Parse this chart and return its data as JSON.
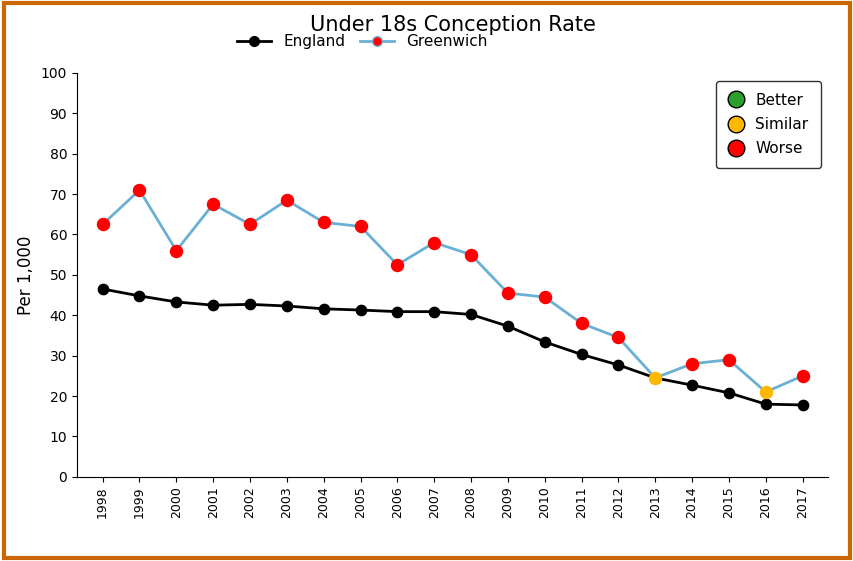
{
  "title": "Under 18s Conception Rate",
  "ylabel": "Per 1,000",
  "years": [
    1998,
    1999,
    2000,
    2001,
    2002,
    2003,
    2004,
    2005,
    2006,
    2007,
    2008,
    2009,
    2010,
    2011,
    2012,
    2013,
    2014,
    2015,
    2016,
    2017
  ],
  "england": [
    46.5,
    44.8,
    43.3,
    42.5,
    42.7,
    42.3,
    41.6,
    41.3,
    40.9,
    40.9,
    40.2,
    37.3,
    33.4,
    30.3,
    27.7,
    24.5,
    22.7,
    20.8,
    18.0,
    17.8
  ],
  "greenwich": [
    62.5,
    71.0,
    56.0,
    67.5,
    62.5,
    68.5,
    63.0,
    62.0,
    52.5,
    58.0,
    55.0,
    45.5,
    44.5,
    38.0,
    34.5,
    24.5,
    28.0,
    29.0,
    21.0,
    25.0
  ],
  "greenwich_colors": [
    "red",
    "red",
    "red",
    "red",
    "red",
    "red",
    "red",
    "red",
    "red",
    "red",
    "red",
    "red",
    "red",
    "red",
    "red",
    "yellow",
    "red",
    "red",
    "yellow",
    "red"
  ],
  "england_color": "black",
  "greenwich_line_color": "#6ab0d4",
  "ylim": [
    0,
    100
  ],
  "yticks": [
    0,
    10,
    20,
    30,
    40,
    50,
    60,
    70,
    80,
    90,
    100
  ],
  "legend_better_color": "#2ca02c",
  "legend_similar_color": "#FFB800",
  "legend_worse_color": "red",
  "background_color": "white",
  "border_color": "#CC6600"
}
